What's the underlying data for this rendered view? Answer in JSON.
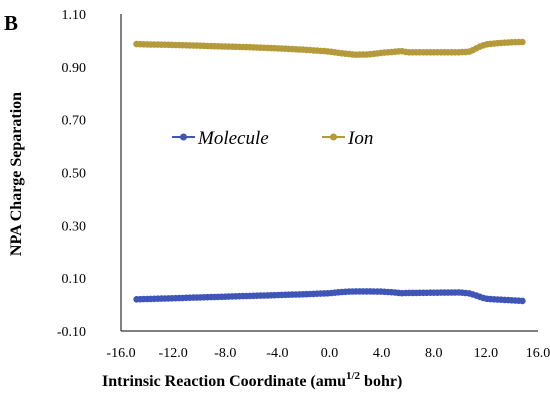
{
  "panel_label": "B",
  "chart_data": {
    "type": "line",
    "title": "",
    "ylabel": "NPA Charge Separation",
    "xlabel": {
      "base": "Intrinsic  Reaction Coordinate  (amu",
      "sup": "1/2",
      "suffix": " bohr)"
    },
    "xlim": [
      -16.0,
      16.0
    ],
    "ylim": [
      -0.1,
      1.1
    ],
    "x_ticks": [
      "-16.0",
      "-12.0",
      "-8.0",
      "-4.0",
      "0.0",
      "4.0",
      "8.0",
      "12.0",
      "16.0"
    ],
    "y_ticks": [
      "-0.10",
      "0.10",
      "0.30",
      "0.50",
      "0.70",
      "0.90",
      "1.10"
    ],
    "x_tick_values": [
      -16,
      -12,
      -8,
      -4,
      0,
      4,
      8,
      12,
      16
    ],
    "y_tick_values": [
      -0.1,
      0.1,
      0.3,
      0.5,
      0.7,
      0.9,
      1.1
    ],
    "grid": false,
    "legend_position": "center-top",
    "series": [
      {
        "name": "Molecule",
        "color": "#4055b8",
        "x": [
          -14.8,
          -14.0,
          -12.0,
          -10.0,
          -8.0,
          -6.0,
          -4.0,
          -2.0,
          0.0,
          1.0,
          2.0,
          3.0,
          4.0,
          5.0,
          5.5,
          6.0,
          8.0,
          10.0,
          10.8,
          11.5,
          12.0,
          13.0,
          14.0,
          14.8
        ],
        "values": [
          0.02,
          0.021,
          0.024,
          0.027,
          0.03,
          0.033,
          0.036,
          0.039,
          0.043,
          0.048,
          0.05,
          0.05,
          0.049,
          0.046,
          0.043,
          0.044,
          0.045,
          0.046,
          0.042,
          0.03,
          0.022,
          0.019,
          0.016,
          0.014
        ]
      },
      {
        "name": "Ion",
        "color": "#b59a3c",
        "x": [
          -14.8,
          -14.0,
          -12.0,
          -10.0,
          -8.0,
          -6.0,
          -4.0,
          -2.0,
          0.0,
          1.0,
          2.0,
          3.0,
          4.0,
          5.0,
          5.5,
          6.0,
          8.0,
          10.0,
          10.8,
          11.5,
          12.0,
          13.0,
          14.0,
          14.8
        ],
        "values": [
          0.986,
          0.985,
          0.983,
          0.98,
          0.977,
          0.974,
          0.97,
          0.965,
          0.958,
          0.951,
          0.946,
          0.947,
          0.953,
          0.957,
          0.96,
          0.955,
          0.955,
          0.955,
          0.958,
          0.976,
          0.985,
          0.99,
          0.993,
          0.994
        ]
      }
    ]
  }
}
